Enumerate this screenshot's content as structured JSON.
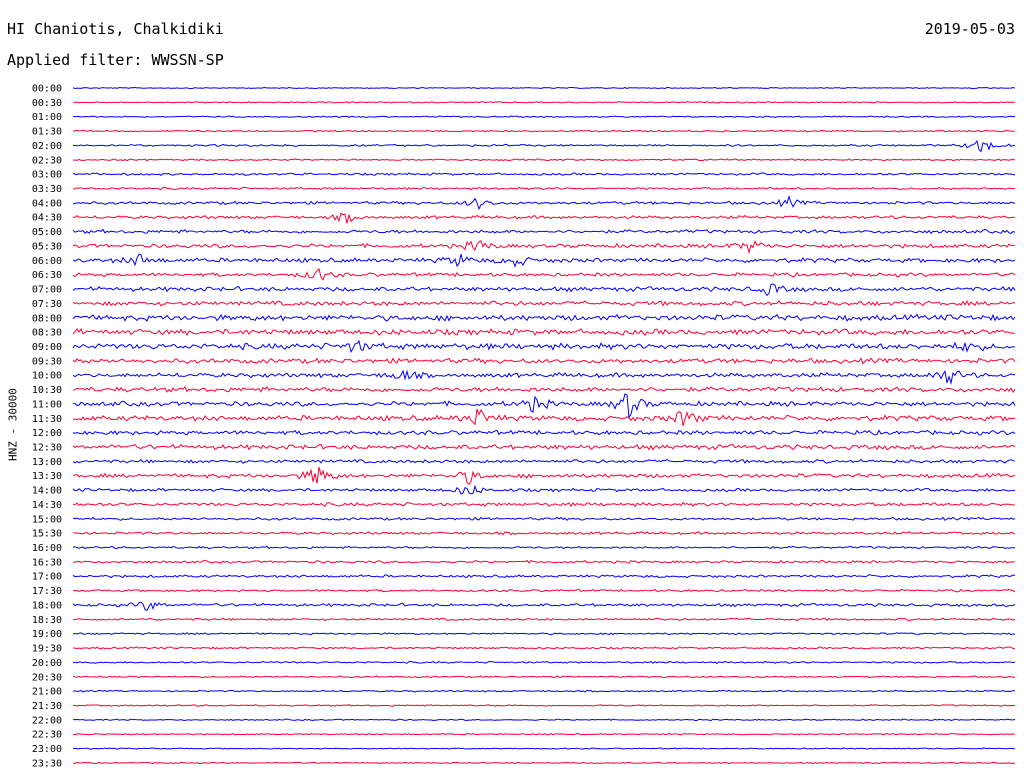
{
  "header": {
    "title": "HI Chaniotis, Chalkidiki",
    "date": "2019-05-03",
    "filter": "Applied filter: WWSSN-SP"
  },
  "chart_data": {
    "type": "line",
    "title": "HI Chaniotis, Chalkidiki",
    "ylabel": "HNZ - 30000",
    "row_labels": [
      "00:00",
      "00:30",
      "01:00",
      "01:30",
      "02:00",
      "02:30",
      "03:00",
      "03:30",
      "04:00",
      "04:30",
      "05:00",
      "05:30",
      "06:00",
      "06:30",
      "07:00",
      "07:30",
      "08:00",
      "08:30",
      "09:00",
      "09:30",
      "10:00",
      "10:30",
      "11:00",
      "11:30",
      "12:00",
      "12:30",
      "13:00",
      "13:30",
      "14:00",
      "14:30",
      "15:00",
      "15:30",
      "16:00",
      "16:30",
      "17:00",
      "17:30",
      "18:00",
      "18:30",
      "19:00",
      "19:30",
      "20:00",
      "20:30",
      "21:00",
      "21:30",
      "22:00",
      "22:30",
      "23:00",
      "23:30"
    ],
    "colors": [
      "#0000ff",
      "#ff0033"
    ],
    "noise_level": [
      0.5,
      0.6,
      0.6,
      0.7,
      0.9,
      0.8,
      1.0,
      1.0,
      1.3,
      1.4,
      1.6,
      1.8,
      2.0,
      1.6,
      2.0,
      2.1,
      2.6,
      2.6,
      2.7,
      2.2,
      2.0,
      2.2,
      2.1,
      2.4,
      1.9,
      2.2,
      1.6,
      1.8,
      1.4,
      1.6,
      1.2,
      1.2,
      1.0,
      1.1,
      1.2,
      1.0,
      1.3,
      1.0,
      0.8,
      0.9,
      0.8,
      0.7,
      0.7,
      0.7,
      0.6,
      0.6,
      0.5,
      0.5
    ],
    "events": [
      {
        "row": 4,
        "pos": 0.965,
        "amp": 9
      },
      {
        "row": 8,
        "pos": 0.43,
        "amp": 6
      },
      {
        "row": 8,
        "pos": 0.76,
        "amp": 5
      },
      {
        "row": 9,
        "pos": 0.29,
        "amp": 5
      },
      {
        "row": 11,
        "pos": 0.43,
        "amp": 7
      },
      {
        "row": 11,
        "pos": 0.72,
        "amp": 7
      },
      {
        "row": 12,
        "pos": 0.07,
        "amp": 6
      },
      {
        "row": 12,
        "pos": 0.41,
        "amp": 6
      },
      {
        "row": 12,
        "pos": 0.47,
        "amp": 6
      },
      {
        "row": 13,
        "pos": 0.26,
        "amp": 7
      },
      {
        "row": 14,
        "pos": 0.74,
        "amp": 6
      },
      {
        "row": 18,
        "pos": 0.3,
        "amp": 6
      },
      {
        "row": 18,
        "pos": 0.95,
        "amp": 5
      },
      {
        "row": 20,
        "pos": 0.35,
        "amp": 6
      },
      {
        "row": 20,
        "pos": 0.93,
        "amp": 9
      },
      {
        "row": 22,
        "pos": 0.49,
        "amp": 8
      },
      {
        "row": 22,
        "pos": 0.59,
        "amp": 14
      },
      {
        "row": 23,
        "pos": 0.43,
        "amp": 10
      },
      {
        "row": 23,
        "pos": 0.65,
        "amp": 10
      },
      {
        "row": 27,
        "pos": 0.26,
        "amp": 11
      },
      {
        "row": 27,
        "pos": 0.42,
        "amp": 7
      },
      {
        "row": 28,
        "pos": 0.42,
        "amp": 7
      },
      {
        "row": 36,
        "pos": 0.08,
        "amp": 6
      }
    ]
  }
}
